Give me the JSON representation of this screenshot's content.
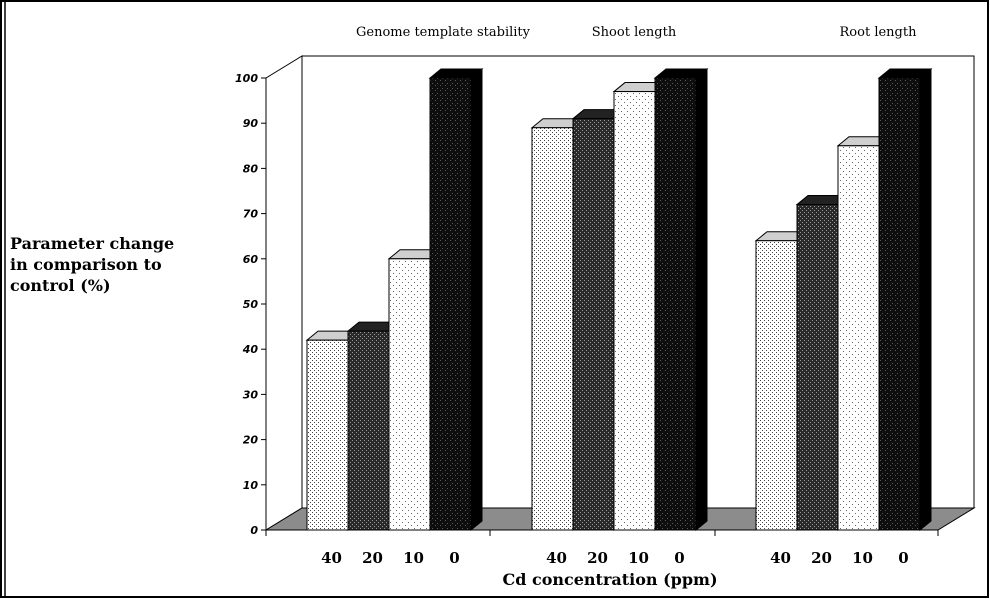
{
  "chart_data": {
    "type": "bar",
    "style": "3d-grouped",
    "title": "",
    "xlabel": "Cd concentration (ppm)",
    "ylabel_lines": [
      "Parameter change",
      "in comparison to",
      "control (%)"
    ],
    "ylim": [
      0,
      100
    ],
    "yticks": [
      "0",
      "10",
      "20",
      "30",
      "40",
      "50",
      "60",
      "70",
      "80",
      "90",
      "100"
    ],
    "x_tick_labels": [
      "40",
      "20",
      "10",
      "0"
    ],
    "groups": [
      {
        "label": "Genome template stability",
        "bars": [
          {
            "x": "40",
            "value": 42
          },
          {
            "x": "20",
            "value": 44
          },
          {
            "x": "10",
            "value": 60
          },
          {
            "x": "0",
            "value": 100
          }
        ]
      },
      {
        "label": "Shoot length",
        "bars": [
          {
            "x": "40",
            "value": 89
          },
          {
            "x": "20",
            "value": 91
          },
          {
            "x": "10",
            "value": 97
          },
          {
            "x": "0",
            "value": 100
          }
        ]
      },
      {
        "label": "Root length",
        "bars": [
          {
            "x": "40",
            "value": 64
          },
          {
            "x": "20",
            "value": 72
          },
          {
            "x": "10",
            "value": 85
          },
          {
            "x": "0",
            "value": 100
          }
        ]
      }
    ],
    "colors": {
      "floor": "#8c8c8c",
      "cap": "#cfcfcf",
      "dark_bar": "#2e2e2e",
      "black_bar": "#111111"
    }
  }
}
